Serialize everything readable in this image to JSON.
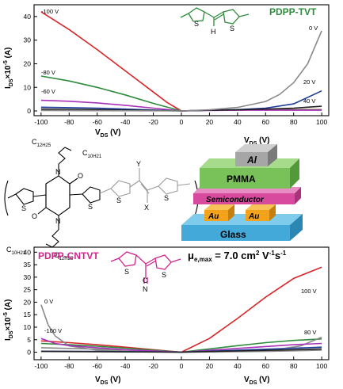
{
  "chart_data": [
    {
      "type": "line",
      "name": "PDPP-TVT",
      "title": "PDPP-TVT",
      "title_color": "#2e8b3c",
      "xlabel": "V_DS (V)",
      "ylabel": "I_DS×10^-5 (A)",
      "xlim": [
        -105,
        105
      ],
      "ylim": [
        -2,
        45
      ],
      "x_ticks": [
        -100,
        -80,
        -60,
        -40,
        -20,
        0,
        20,
        40,
        60,
        80,
        100
      ],
      "y_ticks": [
        0,
        10,
        20,
        30,
        40
      ],
      "series": [
        {
          "label": "-100 V",
          "color": "#d7262a",
          "points": [
            [
              -100,
              42
            ],
            [
              -80,
              34.5
            ],
            [
              -60,
              26
            ],
            [
              -40,
              17
            ],
            [
              -20,
              8
            ],
            [
              -10,
              3.5
            ],
            [
              0,
              0
            ],
            [
              20,
              0.3
            ],
            [
              40,
              0.5
            ],
            [
              60,
              0.6
            ],
            [
              80,
              0.6
            ],
            [
              100,
              0.6
            ]
          ]
        },
        {
          "label": "-80 V",
          "color": "#2e8b3c",
          "points": [
            [
              -100,
              14.8
            ],
            [
              -80,
              12.7
            ],
            [
              -60,
              10
            ],
            [
              -40,
              6.8
            ],
            [
              -20,
              3.2
            ],
            [
              0,
              0
            ],
            [
              20,
              0.3
            ],
            [
              40,
              0.4
            ],
            [
              60,
              0.5
            ],
            [
              80,
              0.5
            ],
            [
              100,
              0.5
            ]
          ]
        },
        {
          "label": "-60 V",
          "color": "#a832b8",
          "points": [
            [
              -100,
              4.5
            ],
            [
              -80,
              4.1
            ],
            [
              -60,
              3.4
            ],
            [
              -40,
              2.4
            ],
            [
              -20,
              1.2
            ],
            [
              0,
              0
            ],
            [
              20,
              0.2
            ],
            [
              40,
              0.3
            ],
            [
              60,
              0.3
            ],
            [
              80,
              0.3
            ],
            [
              100,
              0.3
            ]
          ]
        },
        {
          "label": "",
          "color": "#1f3b9c",
          "points": [
            [
              -100,
              1.6
            ],
            [
              -80,
              1.4
            ],
            [
              -60,
              1.2
            ],
            [
              -40,
              0.8
            ],
            [
              -20,
              0.4
            ],
            [
              0,
              0
            ],
            [
              20,
              0.3
            ],
            [
              40,
              0.6
            ],
            [
              60,
              1.2
            ],
            [
              80,
              3
            ],
            [
              100,
              8.5
            ]
          ]
        },
        {
          "label": "",
          "color": "#222222",
          "points": [
            [
              -100,
              0.8
            ],
            [
              -80,
              0.7
            ],
            [
              -60,
              0.6
            ],
            [
              -40,
              0.4
            ],
            [
              -20,
              0.2
            ],
            [
              0,
              0
            ],
            [
              20,
              0.3
            ],
            [
              40,
              0.5
            ],
            [
              60,
              0.8
            ],
            [
              80,
              1.2
            ],
            [
              100,
              2
            ]
          ]
        },
        {
          "label": "0 V",
          "color": "#8a8a8a",
          "points": [
            [
              -100,
              0.2
            ],
            [
              -60,
              0.1
            ],
            [
              0,
              0
            ],
            [
              20,
              0.5
            ],
            [
              40,
              1.5
            ],
            [
              60,
              4
            ],
            [
              70,
              7
            ],
            [
              80,
              12
            ],
            [
              90,
              20
            ],
            [
              100,
              34
            ]
          ]
        }
      ],
      "right_labels": [
        "0 V",
        "20 V",
        "40 V"
      ]
    },
    {
      "type": "line",
      "name": "PDPP-CNTVT",
      "title": "PDPP-CNTVT",
      "title_color": "#d0248c",
      "xlabel": "V_DS (V)",
      "ylabel": "I_DS×10^-5 (A)",
      "xlim": [
        -105,
        105
      ],
      "ylim": [
        -3,
        42
      ],
      "x_ticks": [
        -100,
        -80,
        -60,
        -40,
        -20,
        0,
        20,
        40,
        60,
        80,
        100
      ],
      "y_ticks": [
        0,
        5,
        10,
        15,
        20,
        25,
        30,
        35,
        40
      ],
      "series": [
        {
          "label": "100 V",
          "color": "#d7262a",
          "points": [
            [
              -100,
              4.5
            ],
            [
              -80,
              3.8
            ],
            [
              -60,
              3
            ],
            [
              -40,
              2
            ],
            [
              -20,
              1
            ],
            [
              0,
              0
            ],
            [
              20,
              5.5
            ],
            [
              40,
              13.5
            ],
            [
              60,
              22
            ],
            [
              80,
              29.5
            ],
            [
              100,
              34
            ]
          ]
        },
        {
          "label": "",
          "color": "#2e8b3c",
          "points": [
            [
              -100,
              3.5
            ],
            [
              -80,
              3
            ],
            [
              -60,
              2.4
            ],
            [
              -40,
              1.6
            ],
            [
              -20,
              0.8
            ],
            [
              0,
              0
            ],
            [
              20,
              1.3
            ],
            [
              40,
              2.6
            ],
            [
              60,
              3.8
            ],
            [
              80,
              4.7
            ],
            [
              100,
              5.3
            ]
          ]
        },
        {
          "label": "80 V",
          "color": "#8a8a8a",
          "points": [
            [
              -100,
              1.8
            ],
            [
              -80,
              1.5
            ],
            [
              -60,
              1.2
            ],
            [
              -40,
              0.8
            ],
            [
              -20,
              0.4
            ],
            [
              0,
              0
            ],
            [
              40,
              0.4
            ],
            [
              70,
              1.2
            ],
            [
              85,
              2.5
            ],
            [
              100,
              6
            ]
          ]
        },
        {
          "label": "0 V",
          "color": "#8a8a8a",
          "points": [
            [
              -100,
              19
            ],
            [
              -95,
              11
            ],
            [
              -90,
              6.5
            ],
            [
              -80,
              2.5
            ],
            [
              -60,
              0.8
            ],
            [
              -40,
              0.3
            ],
            [
              0,
              0
            ],
            [
              60,
              0.3
            ],
            [
              100,
              0.8
            ]
          ]
        },
        {
          "label": "-100 V",
          "color": "#a832b8",
          "points": [
            [
              -100,
              5.5
            ],
            [
              -90,
              3.5
            ],
            [
              -80,
              2.6
            ],
            [
              -60,
              1.8
            ],
            [
              -40,
              1
            ],
            [
              -20,
              0.5
            ],
            [
              0,
              0
            ],
            [
              40,
              1.5
            ],
            [
              80,
              3
            ],
            [
              100,
              3.5
            ]
          ]
        },
        {
          "label": "",
          "color": "#1f3b9c",
          "points": [
            [
              -100,
              0.4
            ],
            [
              -60,
              0.3
            ],
            [
              -20,
              0.1
            ],
            [
              0,
              0
            ],
            [
              40,
              0.8
            ],
            [
              80,
              1.6
            ],
            [
              100,
              2
            ]
          ]
        },
        {
          "label": "",
          "color": "#222222",
          "points": [
            [
              -100,
              0.3
            ],
            [
              -60,
              0.2
            ],
            [
              0,
              0
            ],
            [
              40,
              0.5
            ],
            [
              80,
              1
            ],
            [
              100,
              1.3
            ]
          ]
        }
      ],
      "annotation": "μe,max = 7.0 cm² V⁻¹s⁻¹"
    }
  ],
  "structure": {
    "alkyl_top": "C12H25",
    "alkyl_top2": "C10H21",
    "alkyl_bottom": "C10H21",
    "alkyl_bottom2": "C12H25",
    "repeat_n": "n",
    "subst_x": "X",
    "subst_y": "Y",
    "tvt_h": "H",
    "cn_n": "N",
    "cn_c": "C",
    "s_atom": "S",
    "o_atom": "O",
    "n_atom": "N"
  },
  "device": {
    "layers": [
      "Al",
      "PMMA",
      "Semiconductor",
      "Au",
      "Au",
      "Glass"
    ],
    "colors": {
      "al": "#a6a6a6",
      "pmma": "#79c25a",
      "semiconductor": "#d74a9e",
      "au": "#f2a31b",
      "glass": "#42a9d8"
    }
  }
}
